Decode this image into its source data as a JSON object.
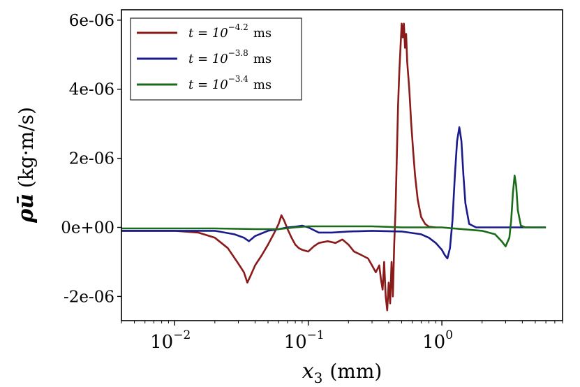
{
  "chart_data": {
    "type": "line",
    "x_scale": "log",
    "xlim": [
      0.004,
      8
    ],
    "ylim": [
      -2.7e-06,
      6.3e-06
    ],
    "xlabel": {
      "symbol": "x",
      "subscript": "3",
      "unit": "(mm)"
    },
    "ylabel": {
      "symbol": "ρū",
      "unit": "(kg·m/s)"
    },
    "yticks": [
      {
        "value": -2e-06,
        "label": "-2e-06"
      },
      {
        "value": 0,
        "label": "0e+00"
      },
      {
        "value": 2e-06,
        "label": "2e-06"
      },
      {
        "value": 4e-06,
        "label": "4e-06"
      },
      {
        "value": 6e-06,
        "label": "6e-06"
      }
    ],
    "xticks": [
      {
        "value": 0.01,
        "base": "10",
        "exp": "−2"
      },
      {
        "value": 0.1,
        "base": "10",
        "exp": "−1"
      },
      {
        "value": 1,
        "base": "10",
        "exp": "0"
      }
    ],
    "legend_position": "top-left",
    "series": [
      {
        "name": "t = 10^-4.2 ms",
        "legend_prefix": "t = 10",
        "legend_exp": "−4.2",
        "legend_suffix": "ms",
        "color": "#8b1a1a",
        "points": [
          [
            0.004,
            -1e-07
          ],
          [
            0.01,
            -1e-07
          ],
          [
            0.015,
            -1.5e-07
          ],
          [
            0.02,
            -3e-07
          ],
          [
            0.025,
            -6e-07
          ],
          [
            0.03,
            -1.05e-06
          ],
          [
            0.033,
            -1.3e-06
          ],
          [
            0.035,
            -1.6e-06
          ],
          [
            0.037,
            -1.4e-06
          ],
          [
            0.04,
            -1.1e-06
          ],
          [
            0.045,
            -8e-07
          ],
          [
            0.05,
            -5e-07
          ],
          [
            0.055,
            -2e-07
          ],
          [
            0.06,
            1e-07
          ],
          [
            0.063,
            3.5e-07
          ],
          [
            0.066,
            2e-07
          ],
          [
            0.07,
            -5e-08
          ],
          [
            0.075,
            -3e-07
          ],
          [
            0.08,
            -5e-07
          ],
          [
            0.085,
            -6e-07
          ],
          [
            0.09,
            -6.5e-07
          ],
          [
            0.1,
            -7e-07
          ],
          [
            0.11,
            -5.5e-07
          ],
          [
            0.12,
            -4.5e-07
          ],
          [
            0.14,
            -4e-07
          ],
          [
            0.16,
            -4.5e-07
          ],
          [
            0.18,
            -3.5e-07
          ],
          [
            0.2,
            -5e-07
          ],
          [
            0.22,
            -7e-07
          ],
          [
            0.25,
            -8e-07
          ],
          [
            0.28,
            -9e-07
          ],
          [
            0.3,
            -1.1e-06
          ],
          [
            0.32,
            -1.3e-06
          ],
          [
            0.34,
            -1.1e-06
          ],
          [
            0.35,
            -1.5e-06
          ],
          [
            0.36,
            -1.8e-06
          ],
          [
            0.37,
            -1e-06
          ],
          [
            0.38,
            -2e-06
          ],
          [
            0.39,
            -2.4e-06
          ],
          [
            0.4,
            -1.6e-06
          ],
          [
            0.41,
            -2.2e-06
          ],
          [
            0.42,
            -1e-06
          ],
          [
            0.43,
            -2e-06
          ],
          [
            0.44,
            -5e-07
          ],
          [
            0.45,
            5e-07
          ],
          [
            0.46,
            2e-06
          ],
          [
            0.47,
            3.5e-06
          ],
          [
            0.48,
            4.5e-06
          ],
          [
            0.49,
            5.2e-06
          ],
          [
            0.5,
            5.9e-06
          ],
          [
            0.51,
            5.5e-06
          ],
          [
            0.52,
            5.9e-06
          ],
          [
            0.53,
            5.2e-06
          ],
          [
            0.54,
            5.6e-06
          ],
          [
            0.55,
            4.8e-06
          ],
          [
            0.57,
            4e-06
          ],
          [
            0.59,
            3e-06
          ],
          [
            0.61,
            2.2e-06
          ],
          [
            0.63,
            1.5e-06
          ],
          [
            0.66,
            8e-07
          ],
          [
            0.7,
            3e-07
          ],
          [
            0.75,
            1e-07
          ],
          [
            0.8,
            2e-08
          ],
          [
            0.9,
            0
          ]
        ]
      },
      {
        "name": "t = 10^-3.8 ms",
        "legend_prefix": "t = 10",
        "legend_exp": "−3.8",
        "legend_suffix": "ms",
        "color": "#1a1a8c",
        "points": [
          [
            0.004,
            -1e-07
          ],
          [
            0.01,
            -1e-07
          ],
          [
            0.02,
            -1e-07
          ],
          [
            0.028,
            -2e-07
          ],
          [
            0.033,
            -3e-07
          ],
          [
            0.036,
            -4e-07
          ],
          [
            0.04,
            -2.5e-07
          ],
          [
            0.05,
            -1e-07
          ],
          [
            0.06,
            -5e-08
          ],
          [
            0.07,
            0
          ],
          [
            0.08,
            2e-08
          ],
          [
            0.09,
            5e-08
          ],
          [
            0.1,
            0
          ],
          [
            0.12,
            -1.5e-07
          ],
          [
            0.15,
            -1.5e-07
          ],
          [
            0.2,
            -1.2e-07
          ],
          [
            0.3,
            -1e-07
          ],
          [
            0.5,
            -1.2e-07
          ],
          [
            0.7,
            -2e-07
          ],
          [
            0.8,
            -3e-07
          ],
          [
            0.9,
            -4.5e-07
          ],
          [
            1.0,
            -6.5e-07
          ],
          [
            1.05,
            -8e-07
          ],
          [
            1.1,
            -9e-07
          ],
          [
            1.15,
            -6e-07
          ],
          [
            1.2,
            2e-07
          ],
          [
            1.25,
            1.5e-06
          ],
          [
            1.3,
            2.5e-06
          ],
          [
            1.35,
            2.9e-06
          ],
          [
            1.4,
            2.5e-06
          ],
          [
            1.45,
            1.5e-06
          ],
          [
            1.5,
            7e-07
          ],
          [
            1.6,
            1e-07
          ],
          [
            1.8,
            0
          ],
          [
            2.0,
            0
          ],
          [
            3.0,
            0
          ],
          [
            6.0,
            0
          ]
        ]
      },
      {
        "name": "t = 10^-3.4 ms",
        "legend_prefix": "t = 10",
        "legend_exp": "−3.4",
        "legend_suffix": "ms",
        "color": "#1a6b1a",
        "points": [
          [
            0.004,
            -3e-08
          ],
          [
            0.02,
            -3e-08
          ],
          [
            0.04,
            -5e-08
          ],
          [
            0.06,
            -5e-08
          ],
          [
            0.08,
            0
          ],
          [
            0.1,
            3e-08
          ],
          [
            0.15,
            3e-08
          ],
          [
            0.3,
            3e-08
          ],
          [
            0.5,
            0
          ],
          [
            1.0,
            0
          ],
          [
            2.0,
            -1e-07
          ],
          [
            2.5,
            -2e-07
          ],
          [
            2.8,
            -4e-07
          ],
          [
            3.0,
            -5.5e-07
          ],
          [
            3.2,
            -3e-07
          ],
          [
            3.3,
            2e-07
          ],
          [
            3.4,
            1e-06
          ],
          [
            3.5,
            1.5e-06
          ],
          [
            3.6,
            1.2e-06
          ],
          [
            3.7,
            5e-07
          ],
          [
            3.9,
            5e-08
          ],
          [
            4.2,
            0
          ],
          [
            6.0,
            0
          ]
        ]
      }
    ]
  }
}
